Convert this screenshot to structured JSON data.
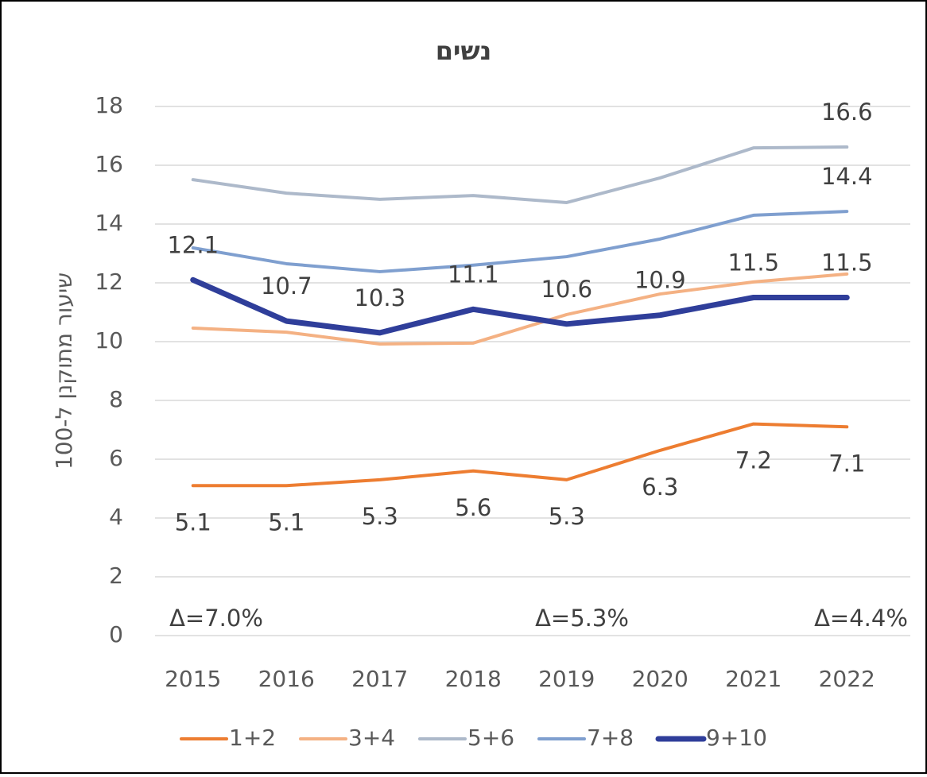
{
  "chart_data": {
    "type": "line",
    "title": "נשים",
    "y_label": "שיעור מתוקנן ל-100",
    "categories": [
      "2015",
      "2016",
      "2017",
      "2018",
      "2019",
      "2020",
      "2021",
      "2022"
    ],
    "ylim": [
      0,
      18
    ],
    "yticks": [
      0,
      2,
      4,
      6,
      8,
      10,
      12,
      14,
      16,
      18
    ],
    "grid": true,
    "legend": "bottom",
    "series": [
      {
        "name": "1+2",
        "color": "#ED7D31",
        "line_width": 4,
        "label_side": "below",
        "values": [
          5.1,
          5.1,
          5.3,
          5.6,
          5.3,
          6.3,
          7.2,
          7.1
        ],
        "value_labels": [
          "5.1",
          "5.1",
          "5.3",
          "5.6",
          "5.3",
          "6.3",
          "7.2",
          "7.1"
        ]
      },
      {
        "name": "3+4",
        "color": "#F4B183",
        "line_width": 4,
        "values": [
          10.46,
          10.32,
          9.92,
          9.95,
          10.92,
          11.62,
          12.03,
          12.3
        ]
      },
      {
        "name": "5+6",
        "color": "#ADB9CA",
        "line_width": 4,
        "label_side": "above",
        "values": [
          15.51,
          15.05,
          14.84,
          14.97,
          14.73,
          15.57,
          16.59,
          16.62
        ],
        "value_labels": [
          null,
          null,
          null,
          null,
          null,
          null,
          null,
          "16.6"
        ]
      },
      {
        "name": "7+8",
        "color": "#7F9FCF",
        "line_width": 4,
        "label_side": "above",
        "values": [
          13.19,
          12.65,
          12.38,
          12.6,
          12.89,
          13.49,
          14.3,
          14.43
        ],
        "value_labels": [
          null,
          null,
          null,
          null,
          null,
          null,
          null,
          "14.4"
        ]
      },
      {
        "name": "9+10",
        "color": "#2F3E9A",
        "line_width": 7,
        "label_side": "above",
        "values": [
          12.1,
          10.7,
          10.3,
          11.1,
          10.6,
          10.9,
          11.5,
          11.5
        ],
        "value_labels": [
          "12.1",
          "10.7",
          "10.3",
          "11.1",
          "10.6",
          "10.9",
          "11.5",
          "11.5"
        ]
      }
    ],
    "annotations": [
      "Δ=7.0%",
      "Δ=5.3%",
      "Δ=4.4%"
    ]
  }
}
